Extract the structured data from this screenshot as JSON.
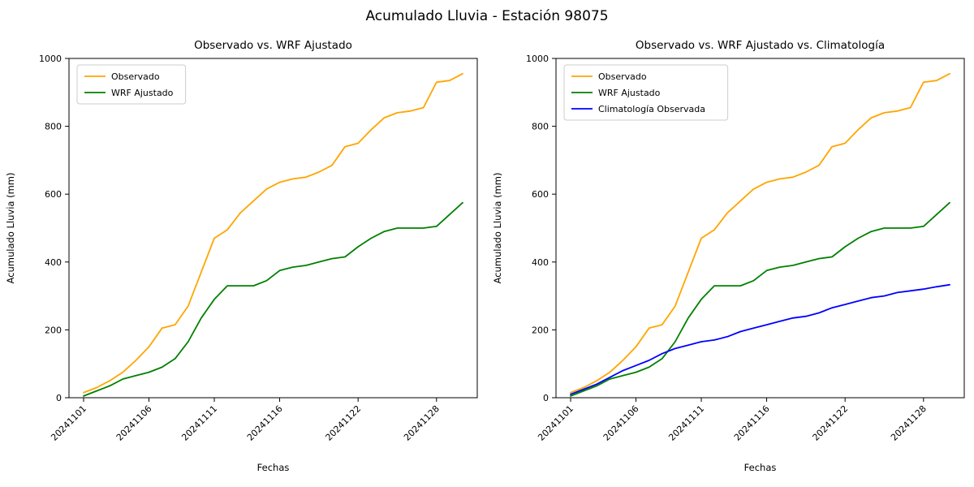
{
  "figure": {
    "suptitle": "Acumulado Lluvia - Estación 98075",
    "background": "#ffffff"
  },
  "chart_data": [
    {
      "type": "line",
      "title": "Observado vs. WRF Ajustado",
      "xlabel": "Fechas",
      "ylabel": "Acumulado Lluvia (mm)",
      "ylim": [
        0,
        1000
      ],
      "yticks": [
        0,
        200,
        400,
        600,
        800,
        1000
      ],
      "grid": false,
      "legend_position": "upper-left",
      "x": [
        "20241101",
        "20241102",
        "20241103",
        "20241104",
        "20241105",
        "20241106",
        "20241107",
        "20241108",
        "20241109",
        "20241110",
        "20241111",
        "20241112",
        "20241113",
        "20241114",
        "20241115",
        "20241116",
        "20241117",
        "20241118",
        "20241119",
        "20241120",
        "20241121",
        "20241122",
        "20241123",
        "20241124",
        "20241125",
        "20241126",
        "20241127",
        "20241128",
        "20241129",
        "20241130"
      ],
      "xtick_labels": [
        "20241101",
        "20241106",
        "20241111",
        "20241116",
        "20241122",
        "20241128"
      ],
      "xtick_indices": [
        0,
        5,
        10,
        15,
        21,
        27
      ],
      "series": [
        {
          "name": "Observado",
          "color": "#FFA500",
          "values": [
            15,
            30,
            50,
            75,
            110,
            150,
            205,
            215,
            270,
            370,
            470,
            495,
            545,
            580,
            615,
            635,
            645,
            650,
            665,
            685,
            740,
            750,
            790,
            825,
            840,
            845,
            855,
            930,
            935,
            955
          ]
        },
        {
          "name": "WRF Ajustado",
          "color": "#008000",
          "values": [
            5,
            20,
            35,
            55,
            65,
            75,
            90,
            115,
            165,
            235,
            290,
            330,
            330,
            330,
            345,
            375,
            385,
            390,
            400,
            410,
            415,
            445,
            470,
            490,
            500,
            500,
            500,
            505,
            540,
            575
          ]
        }
      ]
    },
    {
      "type": "line",
      "title": "Observado vs. WRF Ajustado vs. Climatología",
      "xlabel": "Fechas",
      "ylabel": "Acumulado Lluvia (mm)",
      "ylim": [
        0,
        1000
      ],
      "yticks": [
        0,
        200,
        400,
        600,
        800,
        1000
      ],
      "grid": false,
      "legend_position": "upper-left",
      "x": [
        "20241101",
        "20241102",
        "20241103",
        "20241104",
        "20241105",
        "20241106",
        "20241107",
        "20241108",
        "20241109",
        "20241110",
        "20241111",
        "20241112",
        "20241113",
        "20241114",
        "20241115",
        "20241116",
        "20241117",
        "20241118",
        "20241119",
        "20241120",
        "20241121",
        "20241122",
        "20241123",
        "20241124",
        "20241125",
        "20241126",
        "20241127",
        "20241128",
        "20241129",
        "20241130"
      ],
      "xtick_labels": [
        "20241101",
        "20241106",
        "20241111",
        "20241116",
        "20241122",
        "20241128"
      ],
      "xtick_indices": [
        0,
        5,
        10,
        15,
        21,
        27
      ],
      "series": [
        {
          "name": "Observado",
          "color": "#FFA500",
          "values": [
            15,
            30,
            50,
            75,
            110,
            150,
            205,
            215,
            270,
            370,
            470,
            495,
            545,
            580,
            615,
            635,
            645,
            650,
            665,
            685,
            740,
            750,
            790,
            825,
            840,
            845,
            855,
            930,
            935,
            955
          ]
        },
        {
          "name": "WRF Ajustado",
          "color": "#008000",
          "values": [
            5,
            20,
            35,
            55,
            65,
            75,
            90,
            115,
            165,
            235,
            290,
            330,
            330,
            330,
            345,
            375,
            385,
            390,
            400,
            410,
            415,
            445,
            470,
            490,
            500,
            500,
            500,
            505,
            540,
            575
          ]
        },
        {
          "name": "Climatología Observada",
          "color": "#0000FF",
          "values": [
            10,
            25,
            40,
            60,
            80,
            95,
            110,
            130,
            145,
            155,
            165,
            170,
            180,
            195,
            205,
            215,
            225,
            235,
            240,
            250,
            265,
            275,
            285,
            295,
            300,
            310,
            315,
            320,
            327,
            333
          ]
        }
      ]
    }
  ]
}
